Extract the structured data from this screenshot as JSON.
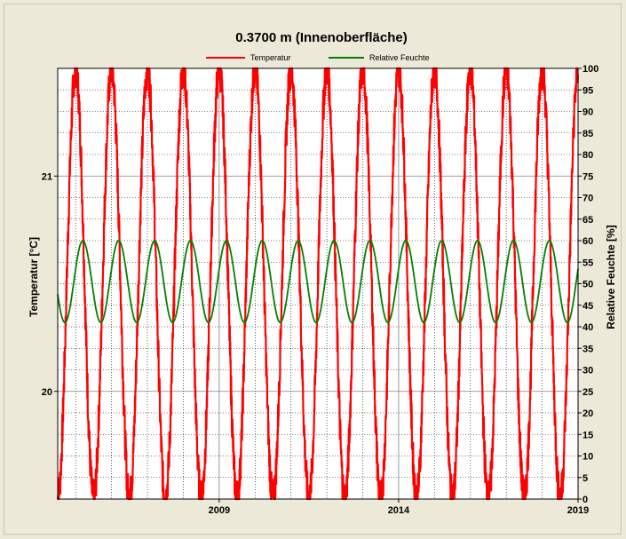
{
  "chart_data": {
    "type": "line",
    "title": "0.3700 m (Innenoberfläche)",
    "legend": [
      "Temperatur",
      "Relative Feuchte"
    ],
    "legend_position": "top-center",
    "xlabel": "",
    "ylabel_left": "Temperatur [°C]",
    "ylabel_right": "Relative Feuchte [%]",
    "x_ticks": [
      "2009",
      "2014",
      "2019"
    ],
    "xlim": [
      2004.5,
      2019.0
    ],
    "ylim_left": [
      19.5,
      21.5
    ],
    "y_ticks_left": [
      "20",
      "21"
    ],
    "ylim_right": [
      0,
      100
    ],
    "y_ticks_right": [
      "0",
      "5",
      "10",
      "15",
      "20",
      "25",
      "30",
      "35",
      "40",
      "45",
      "50",
      "55",
      "60",
      "65",
      "70",
      "75",
      "80",
      "85",
      "90",
      "95",
      "100"
    ],
    "grid": true,
    "series": [
      {
        "name": "Temperatur",
        "color": "#ff0000",
        "axis": "left",
        "period_years": 1.0,
        "mean": 20.5,
        "amplitude": 1.0,
        "peak_times": [
          2005.0,
          2006.0,
          2007.0,
          2008.0,
          2009.0,
          2010.0,
          2011.0,
          2012.0,
          2013.0,
          2014.0,
          2015.0,
          2016.0,
          2017.0,
          2018.0
        ],
        "min_times": [
          2004.5,
          2005.5,
          2006.5,
          2007.5,
          2008.5,
          2009.5,
          2010.5,
          2011.5,
          2012.5,
          2013.5,
          2014.5,
          2015.5,
          2016.5,
          2017.5,
          2018.5
        ],
        "max_value": 21.5,
        "min_value": 19.5
      },
      {
        "name": "Relative Feuchte",
        "color": "#008000",
        "axis": "right",
        "period_years": 1.0,
        "mean": 50.5,
        "amplitude": 9.5,
        "peak_times": [
          2005.2,
          2006.2,
          2007.2,
          2008.2,
          2009.2,
          2010.2,
          2011.2,
          2012.2,
          2013.2,
          2014.2,
          2015.2,
          2016.2,
          2017.2,
          2018.2
        ],
        "max_value": 60,
        "min_value": 41
      }
    ]
  }
}
